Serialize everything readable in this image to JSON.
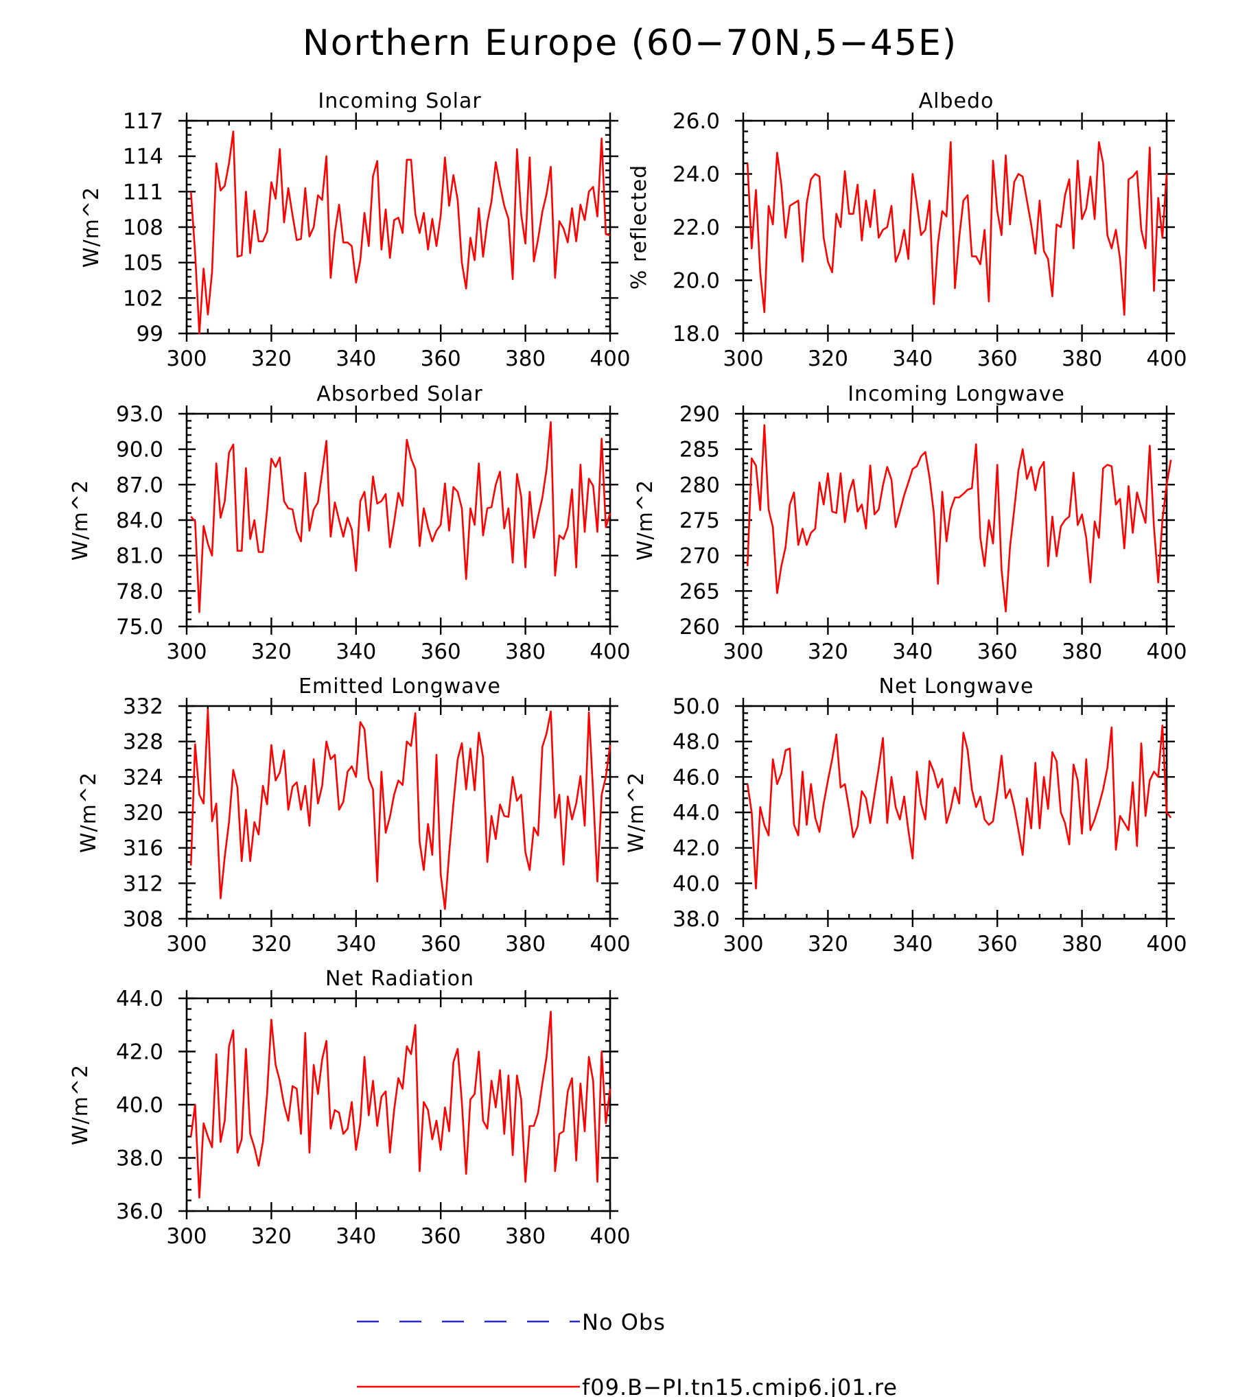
{
  "figure": {
    "title": "Northern Europe (60−70N,5−45E)",
    "legend": [
      {
        "label": "No Obs",
        "color": "#2727d6",
        "style": "dashed"
      },
      {
        "label": "f09.B−PI.tn15.cmip6.j01.re",
        "color": "#ff0000",
        "style": "solid"
      }
    ]
  },
  "chart_data": [
    {
      "type": "line",
      "title": "Incoming Solar",
      "xlabel": "",
      "ylabel": "W/m^2",
      "xlim": [
        300,
        400
      ],
      "ylim": [
        99,
        117
      ],
      "xticks": [
        300,
        320,
        340,
        360,
        380,
        400
      ],
      "xtick_labels": [
        "300",
        "320",
        "340",
        "360",
        "380",
        "400"
      ],
      "yticks": [
        99,
        102,
        105,
        108,
        111,
        114,
        117
      ],
      "ytick_labels": [
        "99",
        "102",
        "105",
        "108",
        "111",
        "114",
        "117"
      ],
      "x_start": 301,
      "grid": false,
      "series": [
        {
          "color": "#ff0000",
          "values": [
            111.0,
            105.8,
            99.0,
            104.5,
            100.6,
            104.2,
            113.4,
            111.1,
            111.5,
            113.4,
            116.1,
            105.5,
            105.6,
            111.0,
            105.8,
            109.4,
            106.8,
            106.8,
            107.6,
            111.8,
            110.4,
            114.6,
            108.4,
            111.3,
            109.0,
            106.9,
            107.0,
            111.3,
            107.2,
            108.0,
            110.7,
            110.3,
            114.0,
            103.7,
            107.5,
            109.9,
            106.7,
            106.7,
            106.4,
            103.3,
            105.2,
            109.2,
            106.4,
            112.3,
            113.6,
            106.1,
            109.5,
            105.4,
            108.6,
            108.8,
            107.5,
            113.7,
            113.7,
            109.1,
            107.5,
            109.2,
            106.1,
            108.7,
            106.4,
            109.0,
            113.9,
            109.8,
            112.4,
            110.3,
            105.0,
            102.8,
            107.1,
            105.2,
            109.6,
            105.5,
            108.4,
            110.2,
            113.5,
            111.5,
            109.8,
            108.7,
            103.6,
            114.6,
            109.1,
            106.6,
            113.9,
            105.1,
            107.0,
            109.3,
            110.8,
            113.1,
            103.7,
            108.5,
            107.9,
            106.7,
            109.6,
            106.8,
            109.9,
            108.6,
            111.0,
            111.4,
            108.9,
            115.5,
            107.4,
            107.3
          ]
        }
      ]
    },
    {
      "type": "line",
      "title": "Albedo",
      "xlabel": "",
      "ylabel": "% reflected",
      "xlim": [
        300,
        400
      ],
      "ylim": [
        18.0,
        26.0
      ],
      "xticks": [
        300,
        320,
        340,
        360,
        380,
        400
      ],
      "xtick_labels": [
        "300",
        "320",
        "340",
        "360",
        "380",
        "400"
      ],
      "yticks": [
        18,
        20,
        22,
        24,
        26
      ],
      "ytick_labels": [
        "18.0",
        "20.0",
        "22.0",
        "24.0",
        "26.0"
      ],
      "x_start": 301,
      "grid": false,
      "series": [
        {
          "color": "#ff0000",
          "values": [
            24.4,
            21.2,
            23.4,
            20.3,
            18.8,
            22.8,
            22.1,
            24.8,
            23.6,
            21.6,
            22.8,
            22.9,
            23.0,
            20.7,
            22.9,
            23.8,
            24.0,
            23.9,
            21.6,
            20.7,
            20.3,
            22.5,
            22.0,
            24.1,
            22.5,
            22.5,
            23.6,
            21.5,
            23.0,
            22.0,
            23.4,
            21.6,
            21.9,
            22.0,
            22.8,
            20.7,
            21.1,
            21.9,
            20.8,
            24.0,
            22.9,
            21.7,
            21.9,
            23.0,
            19.1,
            21.4,
            22.6,
            22.4,
            25.2,
            19.7,
            21.6,
            23.0,
            23.2,
            20.9,
            20.9,
            20.6,
            21.9,
            19.2,
            24.5,
            22.6,
            21.7,
            24.7,
            22.1,
            23.7,
            24.0,
            23.9,
            23.0,
            22.1,
            21.0,
            23.0,
            21.1,
            20.8,
            19.4,
            22.1,
            22.0,
            23.2,
            23.8,
            21.2,
            24.5,
            22.3,
            22.7,
            23.9,
            22.3,
            25.2,
            24.4,
            21.7,
            21.2,
            21.9,
            20.8,
            18.7,
            23.8,
            23.9,
            24.1,
            21.9,
            21.2,
            25.0,
            19.6,
            23.1,
            21.6,
            24.0
          ]
        }
      ]
    },
    {
      "type": "line",
      "title": "Absorbed Solar",
      "xlabel": "",
      "ylabel": "W/m^2",
      "xlim": [
        300,
        400
      ],
      "ylim": [
        75.0,
        93.0
      ],
      "xticks": [
        300,
        320,
        340,
        360,
        380,
        400
      ],
      "xtick_labels": [
        "300",
        "320",
        "340",
        "360",
        "380",
        "400"
      ],
      "yticks": [
        75,
        78,
        81,
        84,
        87,
        90,
        93
      ],
      "ytick_labels": [
        "75.0",
        "78.0",
        "81.0",
        "84.0",
        "87.0",
        "90.0",
        "93.0"
      ],
      "x_start": 301,
      "grid": false,
      "series": [
        {
          "color": "#ff0000",
          "values": [
            84.3,
            83.9,
            76.2,
            83.5,
            82.0,
            81.0,
            88.8,
            84.2,
            85.6,
            89.7,
            90.4,
            81.4,
            81.4,
            88.4,
            82.4,
            84.0,
            81.3,
            81.3,
            84.9,
            89.2,
            88.5,
            89.3,
            85.6,
            85.0,
            84.9,
            83.1,
            82.2,
            88.0,
            83.1,
            84.9,
            85.5,
            88.0,
            90.7,
            82.6,
            85.5,
            84.0,
            82.6,
            84.2,
            83.2,
            79.7,
            85.6,
            86.4,
            83.1,
            87.7,
            85.4,
            85.6,
            86.2,
            81.7,
            83.8,
            86.3,
            85.2,
            90.8,
            89.2,
            88.3,
            81.8,
            85.0,
            83.4,
            82.2,
            83.1,
            83.6,
            87.1,
            83.1,
            86.8,
            86.4,
            85.0,
            79.0,
            85.0,
            83.6,
            88.8,
            82.7,
            85.0,
            85.1,
            87.0,
            88.1,
            83.3,
            85.0,
            80.4,
            87.9,
            86.0,
            80.0,
            86.4,
            82.5,
            84.3,
            85.9,
            88.3,
            92.3,
            79.3,
            82.7,
            82.4,
            83.4,
            86.6,
            80.0,
            88.7,
            83.0,
            87.5,
            86.9,
            83.0,
            90.9,
            83.4,
            84.6
          ]
        }
      ]
    },
    {
      "type": "line",
      "title": "Incoming Longwave",
      "xlabel": "",
      "ylabel": "W/m^2",
      "xlim": [
        300,
        400
      ],
      "ylim": [
        260,
        290
      ],
      "xticks": [
        300,
        320,
        340,
        360,
        380,
        400
      ],
      "xtick_labels": [
        "300",
        "320",
        "340",
        "360",
        "380",
        "400"
      ],
      "yticks": [
        260,
        265,
        270,
        275,
        280,
        285,
        290
      ],
      "ytick_labels": [
        "260",
        "265",
        "270",
        "275",
        "280",
        "285",
        "290"
      ],
      "x_start": 301,
      "grid": false,
      "series": [
        {
          "color": "#ff0000",
          "values": [
            268.5,
            283.7,
            282.7,
            276.4,
            288.4,
            276.5,
            274.0,
            264.7,
            268.5,
            271.2,
            277.2,
            278.9,
            271.5,
            273.8,
            271.5,
            273.2,
            273.8,
            280.3,
            277.2,
            281.6,
            276.2,
            276.0,
            281.6,
            274.7,
            278.9,
            280.7,
            276.2,
            277.2,
            273.8,
            282.7,
            275.8,
            276.5,
            279.9,
            282.5,
            280.7,
            274.0,
            276.2,
            278.5,
            280.3,
            282.2,
            282.6,
            284.0,
            284.6,
            281.0,
            276.0,
            266.0,
            279.0,
            272.0,
            276.5,
            278.2,
            278.2,
            278.7,
            279.3,
            279.5,
            285.7,
            272.5,
            268.5,
            275.0,
            271.7,
            282.8,
            268.0,
            262.1,
            271.2,
            276.5,
            282.0,
            285.0,
            280.8,
            282.5,
            279.2,
            282.2,
            283.2,
            268.5,
            275.5,
            269.9,
            274.1,
            275.0,
            275.5,
            281.7,
            274.3,
            275.8,
            272.5,
            266.2,
            274.8,
            272.5,
            282.3,
            282.8,
            282.6,
            277.2,
            278.0,
            271.0,
            279.8,
            273.2,
            278.9,
            276.6,
            274.6,
            285.5,
            274.0,
            266.2,
            275.0,
            280.0,
            283.5
          ]
        }
      ]
    },
    {
      "type": "line",
      "title": "Emitted Longwave",
      "xlabel": "",
      "ylabel": "W/m^2",
      "xlim": [
        300,
        400
      ],
      "ylim": [
        308,
        332
      ],
      "xticks": [
        300,
        320,
        340,
        360,
        380,
        400
      ],
      "xtick_labels": [
        "300",
        "320",
        "340",
        "360",
        "380",
        "400"
      ],
      "yticks": [
        308,
        312,
        316,
        320,
        324,
        328,
        332
      ],
      "ytick_labels": [
        "308",
        "312",
        "316",
        "320",
        "324",
        "328",
        "332"
      ],
      "x_start": 301,
      "grid": false,
      "series": [
        {
          "color": "#ff0000",
          "values": [
            314.0,
            327.7,
            322.0,
            321.0,
            331.6,
            319.0,
            321.0,
            310.3,
            315.0,
            318.9,
            324.8,
            322.8,
            314.5,
            320.3,
            314.5,
            318.9,
            317.5,
            323.0,
            320.9,
            327.6,
            323.6,
            324.5,
            327.0,
            320.3,
            322.9,
            323.4,
            320.3,
            323.0,
            318.5,
            326.0,
            321.0,
            323.0,
            328.0,
            326.0,
            326.5,
            320.3,
            321.2,
            324.6,
            325.2,
            324.0,
            330.2,
            329.4,
            323.8,
            322.6,
            312.2,
            324.6,
            317.7,
            319.5,
            322.0,
            323.6,
            323.1,
            328.0,
            327.5,
            331.2,
            316.7,
            313.5,
            318.7,
            315.2,
            326.5,
            313.0,
            309.1,
            315.4,
            321.0,
            326.0,
            327.8,
            322.6,
            327.2,
            322.5,
            329.0,
            326.2,
            314.4,
            319.6,
            317.0,
            320.9,
            319.6,
            319.5,
            324.0,
            321.3,
            322.0,
            315.5,
            313.5,
            318.3,
            317.4,
            327.4,
            328.9,
            331.4,
            319.4,
            322.0,
            314.1,
            321.8,
            319.2,
            321.0,
            324.1,
            318.5,
            331.3,
            322.2,
            312.2,
            322.0,
            324.0,
            327.6
          ]
        }
      ]
    },
    {
      "type": "line",
      "title": "Net Longwave",
      "xlabel": "",
      "ylabel": "W/m^2",
      "xlim": [
        300,
        400
      ],
      "ylim": [
        38.0,
        50.0
      ],
      "xticks": [
        300,
        320,
        340,
        360,
        380,
        400
      ],
      "xtick_labels": [
        "300",
        "320",
        "340",
        "360",
        "380",
        "400"
      ],
      "yticks": [
        38,
        40,
        42,
        44,
        46,
        48,
        50
      ],
      "ytick_labels": [
        "38.0",
        "40.0",
        "42.0",
        "44.0",
        "46.0",
        "48.0",
        "50.0"
      ],
      "x_start": 301,
      "grid": false,
      "series": [
        {
          "color": "#ff0000",
          "values": [
            45.6,
            44.0,
            39.7,
            44.3,
            43.3,
            42.7,
            47.0,
            45.6,
            46.2,
            47.5,
            47.6,
            43.3,
            42.7,
            46.3,
            43.3,
            45.6,
            43.7,
            42.9,
            44.5,
            45.8,
            47.0,
            48.4,
            45.4,
            45.6,
            44.2,
            42.6,
            43.2,
            45.2,
            44.8,
            43.4,
            45.0,
            46.5,
            48.2,
            43.4,
            46.0,
            44.3,
            43.6,
            44.9,
            43.0,
            41.4,
            46.3,
            44.5,
            43.6,
            46.9,
            46.3,
            45.4,
            45.9,
            43.4,
            44.2,
            45.4,
            44.5,
            48.5,
            47.5,
            45.3,
            44.3,
            44.9,
            43.6,
            43.3,
            43.5,
            45.2,
            47.2,
            44.8,
            45.3,
            44.3,
            43.0,
            41.6,
            44.8,
            43.1,
            46.8,
            43.1,
            46.0,
            44.2,
            47.4,
            46.9,
            44.0,
            43.4,
            42.2,
            46.7,
            45.8,
            42.8,
            47.0,
            43.0,
            43.6,
            44.4,
            45.3,
            46.5,
            48.8,
            41.9,
            43.8,
            43.4,
            43.0,
            45.7,
            42.1,
            47.9,
            43.8,
            45.8,
            46.3,
            46.0,
            48.9,
            44.0,
            43.7
          ]
        }
      ]
    },
    {
      "type": "line",
      "title": "Net Radiation",
      "xlabel": "",
      "ylabel": "W/m^2",
      "xlim": [
        300,
        400
      ],
      "ylim": [
        36.0,
        44.0
      ],
      "xticks": [
        300,
        320,
        340,
        360,
        380,
        400
      ],
      "xtick_labels": [
        "300",
        "320",
        "340",
        "360",
        "380",
        "400"
      ],
      "yticks": [
        36,
        38,
        40,
        42,
        44
      ],
      "ytick_labels": [
        "36.0",
        "38.0",
        "40.0",
        "42.0",
        "44.0"
      ],
      "x_start": 301,
      "grid": false,
      "series": [
        {
          "color": "#ff0000",
          "values": [
            38.8,
            40.0,
            36.5,
            39.3,
            38.8,
            38.4,
            41.9,
            38.6,
            39.4,
            42.2,
            42.8,
            38.2,
            38.7,
            42.1,
            38.9,
            38.4,
            37.7,
            38.6,
            40.4,
            43.2,
            41.5,
            40.9,
            40.0,
            39.4,
            40.7,
            40.6,
            38.9,
            42.7,
            38.2,
            41.5,
            40.4,
            41.7,
            42.4,
            39.1,
            39.8,
            39.7,
            38.9,
            39.1,
            40.1,
            38.3,
            39.3,
            41.8,
            39.6,
            40.9,
            39.2,
            40.3,
            40.5,
            38.2,
            39.8,
            41.0,
            40.6,
            42.2,
            41.9,
            43.0,
            37.5,
            40.1,
            39.8,
            38.7,
            39.4,
            38.3,
            39.9,
            39.0,
            41.6,
            42.1,
            40.1,
            37.4,
            40.2,
            40.4,
            42.0,
            39.4,
            39.1,
            40.9,
            39.9,
            41.3,
            38.9,
            41.1,
            38.1,
            41.1,
            40.2,
            37.1,
            39.2,
            39.2,
            39.7,
            40.8,
            41.8,
            43.5,
            37.5,
            38.9,
            39.0,
            40.5,
            41.0,
            37.9,
            40.8,
            39.0,
            41.8,
            40.9,
            37.1,
            42.0,
            39.3,
            40.6
          ]
        }
      ]
    }
  ]
}
